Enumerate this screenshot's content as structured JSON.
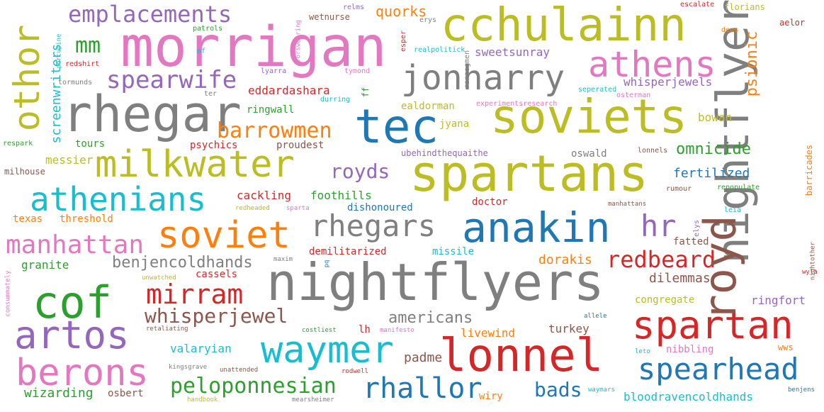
{
  "words": [
    {
      "text": "morrigan",
      "color": "#e377c2"
    },
    {
      "text": "cchulainn",
      "color": "#bcbd22"
    },
    {
      "text": "rhegar",
      "color": "#7f7f7f"
    },
    {
      "text": "soviets",
      "color": "#bcbd22"
    },
    {
      "text": "tec",
      "color": "#1f77b4"
    },
    {
      "text": "spartans",
      "color": "#bcbd22"
    },
    {
      "text": "milkwater",
      "color": "#bcbd22"
    },
    {
      "text": "nightflyers",
      "color": "#7f7f7f"
    },
    {
      "text": "lonnel",
      "color": "#d62728"
    },
    {
      "text": "anakin",
      "color": "#1f77b4"
    },
    {
      "text": "soviet",
      "color": "#ff7f0e"
    },
    {
      "text": "spartan",
      "color": "#d62728"
    },
    {
      "text": "waymer",
      "color": "#17becf"
    },
    {
      "text": "cof",
      "color": "#2ca02c"
    },
    {
      "text": "artos",
      "color": "#9467bd"
    },
    {
      "text": "berons",
      "color": "#e377c2"
    },
    {
      "text": "athens",
      "color": "#e377c2"
    },
    {
      "text": "jonharry",
      "color": "#7f7f7f"
    },
    {
      "text": "athenians",
      "color": "#17becf"
    },
    {
      "text": "mirram",
      "color": "#d62728"
    },
    {
      "text": "rhegars",
      "color": "#7f7f7f"
    },
    {
      "text": "spearhead",
      "color": "#1f77b4"
    },
    {
      "text": "rhallor",
      "color": "#1f77b4"
    },
    {
      "text": "manhattan",
      "color": "#e377c2"
    },
    {
      "text": "spearwife",
      "color": "#9467bd"
    },
    {
      "text": "emplacements",
      "color": "#9467bd"
    },
    {
      "text": "peloponnesian",
      "color": "#2ca02c"
    },
    {
      "text": "whisperjewel",
      "color": "#8c564b"
    },
    {
      "text": "redbeard",
      "color": "#d62728"
    },
    {
      "text": "nightflyer",
      "color": "#7f7f7f"
    },
    {
      "text": "royd",
      "color": "#8c564b"
    },
    {
      "text": "othor",
      "color": "#bcbd22"
    },
    {
      "text": "hr",
      "color": "#9467bd"
    },
    {
      "text": "barrowmen",
      "color": "#ff7f0e"
    },
    {
      "text": "royds",
      "color": "#9467bd"
    },
    {
      "text": "mm",
      "color": "#2ca02c"
    },
    {
      "text": "bads",
      "color": "#1f77b4"
    },
    {
      "text": "benjencoldhands",
      "color": "#7f7f7f"
    },
    {
      "text": "omnicide",
      "color": "#2ca02c"
    },
    {
      "text": "americans",
      "color": "#7f7f7f"
    },
    {
      "text": "psionic",
      "color": "#ff7f0e"
    },
    {
      "text": "quorks",
      "color": "#ff7f0e"
    },
    {
      "text": "screenwriters",
      "color": "#17becf"
    },
    {
      "text": "fertilized",
      "color": "#1f77b4"
    },
    {
      "text": "sweetsunray",
      "color": "#9467bd"
    },
    {
      "text": "whisperjewels",
      "color": "#9467bd"
    },
    {
      "text": "eddardashara",
      "color": "#d62728"
    },
    {
      "text": "valaryian",
      "color": "#17becf"
    },
    {
      "text": "wizarding",
      "color": "#2ca02c"
    },
    {
      "text": "dorakis",
      "color": "#ff7f0e"
    },
    {
      "text": "turkey",
      "color": "#8c564b"
    },
    {
      "text": "livewind",
      "color": "#ff7f0e"
    },
    {
      "text": "padme",
      "color": "#8c564b"
    },
    {
      "text": "dilemmas",
      "color": "#8c564b"
    },
    {
      "text": "ringfort",
      "color": "#9467bd"
    },
    {
      "text": "cackling",
      "color": "#d62728"
    },
    {
      "text": "foothills",
      "color": "#2ca02c"
    },
    {
      "text": "granite",
      "color": "#2ca02c"
    },
    {
      "text": "messier",
      "color": "#bcbd22"
    },
    {
      "text": "tours",
      "color": "#2ca02c"
    },
    {
      "text": "psychics",
      "color": "#d62728"
    },
    {
      "text": "proudest",
      "color": "#8c564b"
    },
    {
      "text": "ringwall",
      "color": "#2ca02c"
    },
    {
      "text": "bowan",
      "color": "#bcbd22"
    },
    {
      "text": "oswald",
      "color": "#7f7f7f"
    },
    {
      "text": "ealdorman",
      "color": "#bcbd22"
    },
    {
      "text": "jyana",
      "color": "#bcbd22"
    },
    {
      "text": "missile",
      "color": "#17becf"
    },
    {
      "text": "demilitarized",
      "color": "#d62728"
    },
    {
      "text": "doctor",
      "color": "#d62728"
    },
    {
      "text": "dishonoured",
      "color": "#1f77b4"
    },
    {
      "text": "threshold",
      "color": "#ff7f0e"
    },
    {
      "text": "texas",
      "color": "#ff7f0e"
    },
    {
      "text": "cassels",
      "color": "#d62728"
    },
    {
      "text": "fatted",
      "color": "#8c564b"
    },
    {
      "text": "congregate",
      "color": "#bcbd22"
    },
    {
      "text": "nibbling",
      "color": "#e377c2"
    },
    {
      "text": "osbert",
      "color": "#8c564b"
    },
    {
      "text": "lh",
      "color": "#d62728"
    },
    {
      "text": "wiry",
      "color": "#ff7f0e"
    },
    {
      "text": "bloodravencoldhands",
      "color": "#17becf"
    },
    {
      "text": "wws",
      "color": "#ff7f0e"
    },
    {
      "text": "ubehindthequaithe",
      "color": "#9467bd"
    },
    {
      "text": "wetnurse",
      "color": "#8c564b"
    },
    {
      "text": "ff",
      "color": "#2ca02c"
    },
    {
      "text": "barricades",
      "color": "#ff7f0e"
    },
    {
      "text": "milhouse",
      "color": "#8c564b"
    },
    {
      "text": "florians",
      "color": "#bcbd22"
    },
    {
      "text": "aelor",
      "color": "#d62728"
    },
    {
      "text": "esper",
      "color": "#d62728"
    },
    {
      "text": "realpolitick",
      "color": "#17becf"
    },
    {
      "text": "experimentsresearch",
      "color": "#e377c2"
    },
    {
      "text": "seperated",
      "color": "#17becf"
    },
    {
      "text": "osterman",
      "color": "#e377c2"
    },
    {
      "text": "rannogmen",
      "color": "#7f7f7f"
    },
    {
      "text": "lyarra",
      "color": "#9467bd"
    },
    {
      "text": "tymond",
      "color": "#e377c2"
    },
    {
      "text": "durring",
      "color": "#17becf"
    },
    {
      "text": "ter",
      "color": "#7f7f7f"
    },
    {
      "text": "tormunds",
      "color": "#7f7f7f"
    },
    {
      "text": "redshirt",
      "color": "#d62728"
    },
    {
      "text": "porcupine",
      "color": "#17becf"
    },
    {
      "text": "mf",
      "color": "#17becf"
    },
    {
      "text": "patrols",
      "color": "#2ca02c"
    },
    {
      "text": "forswearing",
      "color": "#e377c2"
    },
    {
      "text": "relms",
      "color": "#9467bd"
    },
    {
      "text": "erys",
      "color": "#7f7f7f"
    },
    {
      "text": "escalate",
      "color": "#d62728"
    },
    {
      "text": "deus",
      "color": "#ff7f0e"
    },
    {
      "text": "respark",
      "color": "#2ca02c"
    },
    {
      "text": "lonnels",
      "color": "#8c564b"
    },
    {
      "text": "rumour",
      "color": "#8c564b"
    },
    {
      "text": "repopulate",
      "color": "#2ca02c"
    },
    {
      "text": "manhattans",
      "color": "#8c564b"
    },
    {
      "text": "leia",
      "color": "#17becf"
    },
    {
      "text": "elys",
      "color": "#9467bd"
    },
    {
      "text": "redheaded",
      "color": "#bcbd22"
    },
    {
      "text": "sparta",
      "color": "#e377c2"
    },
    {
      "text": "maxim",
      "color": "#7f7f7f"
    },
    {
      "text": "pq",
      "color": "#1f77b4"
    },
    {
      "text": "unwatched",
      "color": "#bcbd22"
    },
    {
      "text": "nightother",
      "color": "#8c564b"
    },
    {
      "text": "wyla",
      "color": "#d62728"
    },
    {
      "text": "consummately",
      "color": "#e377c2"
    },
    {
      "text": "retaliating",
      "color": "#8c564b"
    },
    {
      "text": "costliest",
      "color": "#2ca02c"
    },
    {
      "text": "manifesto",
      "color": "#e377c2"
    },
    {
      "text": "allele",
      "color": "#1f77b4"
    },
    {
      "text": "leto",
      "color": "#17becf"
    },
    {
      "text": "kingsgrave",
      "color": "#7f7f7f"
    },
    {
      "text": "unattended",
      "color": "#8c564b"
    },
    {
      "text": "rodwell",
      "color": "#d62728"
    },
    {
      "text": "waymars",
      "color": "#17becf"
    },
    {
      "text": "benjens",
      "color": "#1f77b4"
    },
    {
      "text": "handbook",
      "color": "#bcbd22"
    },
    {
      "text": "mearsheimer",
      "color": "#7f7f7f"
    }
  ]
}
